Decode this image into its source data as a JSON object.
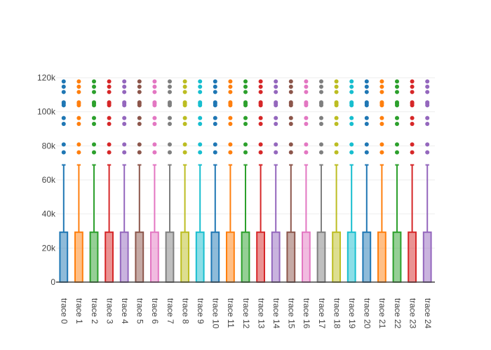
{
  "chart_data": {
    "type": "box",
    "title": "",
    "xlabel": "",
    "ylabel": "",
    "ylim": [
      0,
      120000
    ],
    "y_ticks": [
      {
        "value": 0,
        "label": "0"
      },
      {
        "value": 20000,
        "label": "20k"
      },
      {
        "value": 40000,
        "label": "40k"
      },
      {
        "value": 60000,
        "label": "60k"
      },
      {
        "value": 80000,
        "label": "80k"
      },
      {
        "value": 100000,
        "label": "100k"
      },
      {
        "value": 120000,
        "label": "120k"
      }
    ],
    "grid": true,
    "legend": "none",
    "colors": [
      "#1f77b4",
      "#ff7f0e",
      "#2ca02c",
      "#d62728",
      "#9467bd",
      "#8c564b",
      "#e377c2",
      "#7f7f7f",
      "#bcbd22",
      "#17becf"
    ],
    "box_stats": {
      "min": 0,
      "q1": 0,
      "median": 0,
      "q3": 29300,
      "upper_fence": 68800
    },
    "outliers": [
      76200,
      80800,
      92900,
      96300,
      103800,
      104800,
      105500,
      111600,
      114700,
      117800
    ],
    "traces": [
      {
        "name": "trace 0"
      },
      {
        "name": "trace 1"
      },
      {
        "name": "trace 2"
      },
      {
        "name": "trace 3"
      },
      {
        "name": "trace 4"
      },
      {
        "name": "trace 5"
      },
      {
        "name": "trace 6"
      },
      {
        "name": "trace 7"
      },
      {
        "name": "trace 8"
      },
      {
        "name": "trace 9"
      },
      {
        "name": "trace 10"
      },
      {
        "name": "trace 11"
      },
      {
        "name": "trace 12"
      },
      {
        "name": "trace 13"
      },
      {
        "name": "trace 14"
      },
      {
        "name": "trace 15"
      },
      {
        "name": "trace 16"
      },
      {
        "name": "trace 17"
      },
      {
        "name": "trace 18"
      },
      {
        "name": "trace 19"
      },
      {
        "name": "trace 20"
      },
      {
        "name": "trace 21"
      },
      {
        "name": "trace 22"
      },
      {
        "name": "trace 23"
      },
      {
        "name": "trace 24"
      }
    ]
  }
}
